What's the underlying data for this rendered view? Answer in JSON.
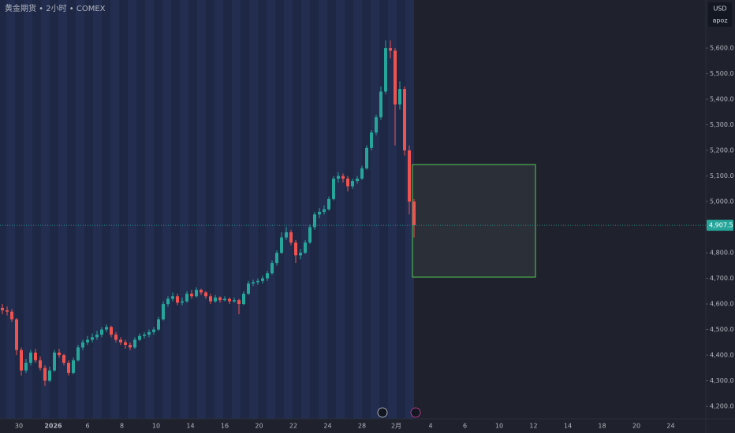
{
  "chart_data": {
    "type": "candlestick",
    "title": "黄金期货 • 2小时 • COMEX",
    "currency": "USD",
    "account": "apoz",
    "up_color": "#26a69a",
    "down_color": "#ef5350",
    "last_price": {
      "value": 4907.5,
      "label": "4,907.5"
    },
    "ylim": [
      4151,
      5788
    ],
    "yticks": [
      {
        "value": 4200,
        "label": "4,200.0"
      },
      {
        "value": 4300,
        "label": "4,300.0"
      },
      {
        "value": 4400,
        "label": "4,400.0"
      },
      {
        "value": 4500,
        "label": "4,500.0"
      },
      {
        "value": 4600,
        "label": "4,600.0"
      },
      {
        "value": 4700,
        "label": "4,700.0"
      },
      {
        "value": 4800,
        "label": "4,800.0"
      },
      {
        "value": 4900,
        "label": "4,900.0"
      },
      {
        "value": 5000,
        "label": "5,000.0"
      },
      {
        "value": 5100,
        "label": "5,100.0"
      },
      {
        "value": 5200,
        "label": "5,200.0"
      },
      {
        "value": 5300,
        "label": "5,300.0"
      },
      {
        "value": 5400,
        "label": "5,400.0"
      },
      {
        "value": 5500,
        "label": "5,500.0"
      },
      {
        "value": 5600,
        "label": "5,600.0"
      }
    ],
    "x_labels": [
      "30",
      "2026",
      "6",
      "8",
      "10",
      "14",
      "16",
      "20",
      "22",
      "24",
      "28",
      "2月",
      "4",
      "6",
      "10",
      "12",
      "14",
      "18",
      "20",
      "24"
    ],
    "ohlc": [
      [
        4585,
        4600,
        4560,
        4575
      ],
      [
        4575,
        4590,
        4555,
        4570
      ],
      [
        4570,
        4580,
        4530,
        4540
      ],
      [
        4540,
        4545,
        4400,
        4420
      ],
      [
        4420,
        4430,
        4320,
        4340
      ],
      [
        4340,
        4385,
        4330,
        4370
      ],
      [
        4370,
        4420,
        4360,
        4410
      ],
      [
        4410,
        4425,
        4370,
        4380
      ],
      [
        4380,
        4395,
        4340,
        4350
      ],
      [
        4350,
        4360,
        4280,
        4300
      ],
      [
        4300,
        4355,
        4295,
        4340
      ],
      [
        4340,
        4420,
        4335,
        4410
      ],
      [
        4410,
        4425,
        4390,
        4400
      ],
      [
        4400,
        4405,
        4360,
        4370
      ],
      [
        4370,
        4380,
        4320,
        4330
      ],
      [
        4330,
        4390,
        4325,
        4380
      ],
      [
        4380,
        4440,
        4375,
        4430
      ],
      [
        4430,
        4460,
        4420,
        4450
      ],
      [
        4450,
        4475,
        4440,
        4460
      ],
      [
        4460,
        4485,
        4450,
        4470
      ],
      [
        4470,
        4495,
        4460,
        4480
      ],
      [
        4480,
        4510,
        4470,
        4500
      ],
      [
        4500,
        4520,
        4490,
        4510
      ],
      [
        4510,
        4515,
        4470,
        4480
      ],
      [
        4480,
        4490,
        4450,
        4460
      ],
      [
        4460,
        4470,
        4440,
        4450
      ],
      [
        4450,
        4460,
        4425,
        4440
      ],
      [
        4440,
        4450,
        4420,
        4430
      ],
      [
        4430,
        4470,
        4425,
        4460
      ],
      [
        4460,
        4485,
        4455,
        4475
      ],
      [
        4475,
        4490,
        4465,
        4480
      ],
      [
        4480,
        4500,
        4470,
        4490
      ],
      [
        4490,
        4510,
        4480,
        4500
      ],
      [
        4500,
        4550,
        4495,
        4540
      ],
      [
        4540,
        4610,
        4535,
        4600
      ],
      [
        4600,
        4630,
        4590,
        4620
      ],
      [
        4620,
        4645,
        4610,
        4630
      ],
      [
        4630,
        4640,
        4595,
        4605
      ],
      [
        4605,
        4625,
        4595,
        4610
      ],
      [
        4610,
        4650,
        4605,
        4640
      ],
      [
        4640,
        4655,
        4620,
        4630
      ],
      [
        4630,
        4665,
        4625,
        4655
      ],
      [
        4655,
        4660,
        4635,
        4645
      ],
      [
        4645,
        4650,
        4620,
        4630
      ],
      [
        4630,
        4640,
        4600,
        4610
      ],
      [
        4610,
        4635,
        4605,
        4625
      ],
      [
        4625,
        4630,
        4605,
        4615
      ],
      [
        4615,
        4630,
        4610,
        4620
      ],
      [
        4620,
        4625,
        4600,
        4610
      ],
      [
        4610,
        4625,
        4605,
        4615
      ],
      [
        4615,
        4620,
        4560,
        4600
      ],
      [
        4600,
        4650,
        4595,
        4640
      ],
      [
        4640,
        4690,
        4635,
        4680
      ],
      [
        4680,
        4695,
        4670,
        4685
      ],
      [
        4685,
        4700,
        4675,
        4690
      ],
      [
        4690,
        4710,
        4680,
        4700
      ],
      [
        4700,
        4730,
        4690,
        4720
      ],
      [
        4720,
        4770,
        4715,
        4760
      ],
      [
        4760,
        4810,
        4750,
        4800
      ],
      [
        4800,
        4880,
        4795,
        4860
      ],
      [
        4860,
        4900,
        4850,
        4880
      ],
      [
        4880,
        4890,
        4830,
        4840
      ],
      [
        4840,
        4850,
        4760,
        4790
      ],
      [
        4790,
        4815,
        4775,
        4800
      ],
      [
        4800,
        4850,
        4795,
        4840
      ],
      [
        4840,
        4910,
        4835,
        4900
      ],
      [
        4900,
        4960,
        4890,
        4950
      ],
      [
        4950,
        4975,
        4935,
        4960
      ],
      [
        4960,
        4985,
        4950,
        4970
      ],
      [
        4970,
        5020,
        4965,
        5010
      ],
      [
        5010,
        5100,
        5005,
        5090
      ],
      [
        5090,
        5115,
        5075,
        5100
      ],
      [
        5100,
        5110,
        5075,
        5090
      ],
      [
        5090,
        5100,
        5040,
        5060
      ],
      [
        5060,
        5090,
        5050,
        5080
      ],
      [
        5080,
        5100,
        5070,
        5090
      ],
      [
        5090,
        5140,
        5085,
        5130
      ],
      [
        5130,
        5220,
        5125,
        5210
      ],
      [
        5210,
        5280,
        5200,
        5270
      ],
      [
        5270,
        5340,
        5260,
        5330
      ],
      [
        5330,
        5450,
        5320,
        5430
      ],
      [
        5430,
        5630,
        5420,
        5600
      ],
      [
        5600,
        5630,
        5560,
        5590
      ],
      [
        5590,
        5600,
        5220,
        5380
      ],
      [
        5380,
        5470,
        5360,
        5440
      ],
      [
        5440,
        5450,
        5180,
        5200
      ],
      [
        5200,
        5220,
        4950,
        5000
      ],
      [
        5000,
        5010,
        4860,
        4907.5
      ]
    ]
  }
}
